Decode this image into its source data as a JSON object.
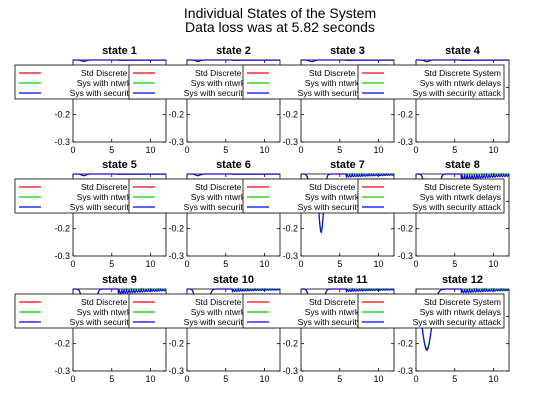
{
  "figure": {
    "title": "Individual States of the System",
    "subtitle": "Data loss was at 5.82 seconds"
  },
  "legend": {
    "entries": [
      {
        "label": "Std Discrete System",
        "color": "#ff0000"
      },
      {
        "label": "Sys with ntwrk delays",
        "color": "#00cc00"
      },
      {
        "label": "Sys with security attack",
        "color": "#0000ff"
      }
    ]
  },
  "chart_data": [
    {
      "type": "line",
      "title": "state 1",
      "xlim": [
        0,
        12
      ],
      "ylim": [
        -0.3,
        0
      ],
      "x_ticks": [
        "0",
        "5",
        "10"
      ],
      "y_ticks": [
        "-0.1",
        "-0.2",
        "-0.3"
      ],
      "response": {
        "a1": 0.005,
        "d1": 0.4,
        "a2": 0.0,
        "d2": 1.0,
        "omega": 10,
        "attack_amp": 0.002
      }
    },
    {
      "type": "line",
      "title": "state 2",
      "xlim": [
        0,
        12
      ],
      "ylim": [
        -0.3,
        0
      ],
      "x_ticks": [
        "0",
        "5",
        "10"
      ],
      "y_ticks": [],
      "response": {
        "a1": 0.005,
        "d1": 0.4,
        "a2": 0.0,
        "d2": 1.0,
        "omega": 10,
        "attack_amp": 0.002
      }
    },
    {
      "type": "line",
      "title": "state 3",
      "xlim": [
        0,
        12
      ],
      "ylim": [
        -0.3,
        0
      ],
      "x_ticks": [
        "0",
        "5",
        "10"
      ],
      "y_ticks": [],
      "response": {
        "a1": 0.006,
        "d1": 0.4,
        "a2": 0.0,
        "d2": 1.0,
        "omega": 10,
        "attack_amp": 0.002
      }
    },
    {
      "type": "line",
      "title": "state 4",
      "xlim": [
        0,
        12
      ],
      "ylim": [
        -0.3,
        0
      ],
      "x_ticks": [
        "0",
        "5",
        "10"
      ],
      "y_ticks": [],
      "response": {
        "a1": 0.006,
        "d1": 0.4,
        "a2": 0.0,
        "d2": 1.0,
        "omega": 10,
        "attack_amp": 0.002
      }
    },
    {
      "type": "line",
      "title": "state 5",
      "xlim": [
        0,
        12
      ],
      "ylim": [
        -0.3,
        0
      ],
      "x_ticks": [
        "0",
        "5",
        "10"
      ],
      "y_ticks": [
        "-0.1",
        "-0.2",
        "-0.3"
      ],
      "response": {
        "a1": 0.006,
        "d1": 0.4,
        "a2": 0.0,
        "d2": 1.0,
        "omega": 10,
        "attack_amp": 0.002
      }
    },
    {
      "type": "line",
      "title": "state 6",
      "xlim": [
        0,
        12
      ],
      "ylim": [
        -0.3,
        0
      ],
      "x_ticks": [
        "0",
        "5",
        "10"
      ],
      "y_ticks": [],
      "response": {
        "a1": 0.006,
        "d1": 0.4,
        "a2": 0.0,
        "d2": 1.0,
        "omega": 10,
        "attack_amp": 0.002
      }
    },
    {
      "type": "line",
      "title": "state 7",
      "xlim": [
        0,
        12
      ],
      "ylim": [
        -0.3,
        0
      ],
      "x_ticks": [
        "0",
        "5",
        "10"
      ],
      "y_ticks": [],
      "response": {
        "a1": 0.1,
        "d1": 0.4,
        "a2": 0.21,
        "d2": 0.45,
        "omega": 10,
        "attack_amp": 0.012
      }
    },
    {
      "type": "line",
      "title": "state 8",
      "xlim": [
        0,
        12
      ],
      "ylim": [
        -0.3,
        0
      ],
      "x_ticks": [
        "0",
        "5",
        "10"
      ],
      "y_ticks": [],
      "response": {
        "a1": 0.1,
        "d1": 0.4,
        "a2": 0.14,
        "d2": 0.45,
        "omega": 10,
        "attack_amp": 0.022
      }
    },
    {
      "type": "line",
      "title": "state 9",
      "xlim": [
        0,
        12
      ],
      "ylim": [
        -0.3,
        0
      ],
      "x_ticks": [
        "0",
        "5",
        "10"
      ],
      "y_ticks": [
        "-0.1",
        "-0.2",
        "-0.3"
      ],
      "response": {
        "a1": 0.06,
        "d1": 0.4,
        "a2": 0.11,
        "d2": 0.45,
        "omega": 10,
        "attack_amp": 0.018
      }
    },
    {
      "type": "line",
      "title": "state 10",
      "xlim": [
        0,
        12
      ],
      "ylim": [
        -0.3,
        0
      ],
      "x_ticks": [
        "0",
        "5",
        "10"
      ],
      "y_ticks": [],
      "response": {
        "a1": 0.11,
        "d1": 0.4,
        "a2": 0.05,
        "d2": 0.45,
        "omega": 10,
        "attack_amp": 0.01
      }
    },
    {
      "type": "line",
      "title": "state 11",
      "xlim": [
        0,
        12
      ],
      "ylim": [
        -0.3,
        0
      ],
      "x_ticks": [
        "0",
        "5",
        "10"
      ],
      "y_ticks": [],
      "response": {
        "a1": 0.12,
        "d1": 0.4,
        "a2": 0.08,
        "d2": 0.45,
        "omega": 10,
        "attack_amp": 0.01
      }
    },
    {
      "type": "line",
      "title": "state 12",
      "xlim": [
        0,
        12
      ],
      "ylim": [
        -0.3,
        0
      ],
      "x_ticks": [
        "0",
        "5",
        "10"
      ],
      "y_ticks": [],
      "response": {
        "a1": 0.22,
        "d1": 0.9,
        "a2": 0.0,
        "d2": 1.0,
        "omega": 10,
        "attack_amp": 0.015
      }
    }
  ]
}
